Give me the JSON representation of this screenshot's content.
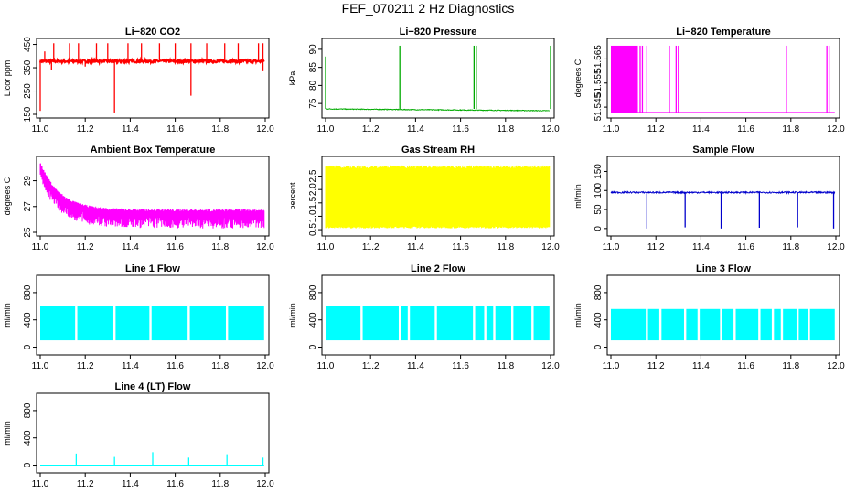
{
  "page_title": "FEF_070211  2 Hz Diagnostics",
  "chart_data": [
    {
      "type": "line",
      "title": "Li−820 CO2",
      "xlabel": "",
      "ylabel": "Licor ppm",
      "xlim": [
        11.0,
        12.0
      ],
      "ylim": [
        150,
        460
      ],
      "xticks": [
        "11.0",
        "11.2",
        "11.4",
        "11.6",
        "11.8",
        "12.0"
      ],
      "yticks": [
        "150",
        "250",
        "350",
        "450"
      ],
      "ytick_values": [
        150,
        250,
        350,
        450
      ],
      "series": [
        {
          "color": "#ff0000",
          "baseline": 378,
          "noise": 6,
          "drift": 0,
          "spikes_up": [
            [
              11.02,
              420
            ],
            [
              11.06,
              455
            ],
            [
              11.13,
              455
            ],
            [
              11.17,
              455
            ],
            [
              11.25,
              455
            ],
            [
              11.3,
              455
            ],
            [
              11.39,
              455
            ],
            [
              11.45,
              455
            ],
            [
              11.53,
              455
            ],
            [
              11.6,
              455
            ],
            [
              11.67,
              455
            ],
            [
              11.74,
              455
            ],
            [
              11.82,
              455
            ],
            [
              11.88,
              455
            ],
            [
              11.97,
              455
            ],
            [
              11.99,
              455
            ]
          ],
          "spikes_down": [
            [
              11.0,
              165
            ],
            [
              11.33,
              158
            ],
            [
              11.67,
              230
            ],
            [
              11.99,
              335
            ],
            [
              11.05,
              340
            ],
            [
              11.2,
              355
            ]
          ]
        }
      ]
    },
    {
      "type": "line",
      "title": "Li−820 Pressure",
      "xlabel": "",
      "ylabel": "kPa",
      "xlim": [
        11.0,
        12.0
      ],
      "ylim": [
        72,
        92
      ],
      "xticks": [
        "11.0",
        "11.2",
        "11.4",
        "11.6",
        "11.8",
        "12.0"
      ],
      "yticks": [
        "75",
        "80",
        "85",
        "90"
      ],
      "ytick_values": [
        75,
        80,
        85,
        90
      ],
      "series": [
        {
          "color": "#00aa00",
          "baseline": 73.5,
          "noise": 0.1,
          "drift": -0.5,
          "spikes_up": [
            [
              11.0,
              88
            ],
            [
              11.33,
              91
            ],
            [
              11.66,
              91
            ],
            [
              11.67,
              91
            ],
            [
              12.0,
              91
            ]
          ],
          "spikes_down": []
        }
      ]
    },
    {
      "type": "line",
      "title": "Li−820 Temperature",
      "xlabel": "",
      "ylabel": "degrees C",
      "xlim": [
        11.0,
        12.0
      ],
      "ylim": [
        51.542,
        51.572
      ],
      "xticks": [
        "11.0",
        "11.2",
        "11.4",
        "11.6",
        "11.8",
        "12.0"
      ],
      "yticks": [
        "51.545",
        "51.555",
        "51.565"
      ],
      "ytick_values": [
        51.545,
        51.555,
        51.565
      ],
      "series": [
        {
          "color": "#ff00ff",
          "baseline": 51.5428,
          "noise": 0,
          "drift": 0,
          "band": [
            11.0,
            11.12,
            51.5428,
            51.5705
          ],
          "spikes_up": [
            [
              11.13,
              51.5705
            ],
            [
              11.14,
              51.5705
            ],
            [
              11.16,
              51.5705
            ],
            [
              11.26,
              51.5705
            ],
            [
              11.29,
              51.5705
            ],
            [
              11.3,
              51.5705
            ],
            [
              11.78,
              51.5705
            ],
            [
              11.96,
              51.5705
            ],
            [
              11.97,
              51.5705
            ]
          ],
          "spikes_down": []
        }
      ]
    },
    {
      "type": "line",
      "title": "Ambient Box Temperature",
      "xlabel": "",
      "ylabel": "degrees C",
      "xlim": [
        11.0,
        12.0
      ],
      "ylim": [
        25,
        30.6
      ],
      "xticks": [
        "11.0",
        "11.2",
        "11.4",
        "11.6",
        "11.8",
        "12.0"
      ],
      "yticks": [
        "25",
        "27",
        "29"
      ],
      "ytick_values": [
        25,
        27,
        29
      ],
      "series": [
        {
          "color": "#ff00ff",
          "curve": "ambient",
          "noise_band": 1.3
        }
      ]
    },
    {
      "type": "line",
      "title": "Gas Stream RH",
      "xlabel": "",
      "ylabel": "percent",
      "xlim": [
        11.0,
        12.0
      ],
      "ylim": [
        0.4,
        3.1
      ],
      "xticks": [
        "11.0",
        "11.2",
        "11.4",
        "11.6",
        "11.8",
        "12.0"
      ],
      "yticks": [
        "0.5",
        "1.0",
        "1.5",
        "2.0",
        "2.5"
      ],
      "ytick_values": [
        0.5,
        1.0,
        1.5,
        2.0,
        2.5
      ],
      "series": [
        {
          "color": "#ffff00",
          "envelope": [
            0.55,
            2.9
          ]
        }
      ]
    },
    {
      "type": "line",
      "title": "Sample Flow",
      "xlabel": "",
      "ylabel": "ml/min",
      "xlim": [
        11.0,
        12.0
      ],
      "ylim": [
        -10,
        180
      ],
      "xticks": [
        "11.0",
        "11.2",
        "11.4",
        "11.6",
        "11.8",
        "12.0"
      ],
      "yticks": [
        "0",
        "50",
        "100",
        "150"
      ],
      "ytick_values": [
        0,
        50,
        100,
        150
      ],
      "series": [
        {
          "color": "#0000cc",
          "baseline": 95,
          "noise": 2,
          "drift": 0,
          "spikes_up": [],
          "spikes_down": [
            [
              11.16,
              0
            ],
            [
              11.33,
              3
            ],
            [
              11.49,
              0
            ],
            [
              11.66,
              2
            ],
            [
              11.83,
              3
            ],
            [
              11.99,
              0
            ]
          ]
        }
      ]
    },
    {
      "type": "line",
      "title": "Line 1 Flow",
      "xlabel": "",
      "ylabel": "ml/min",
      "xlim": [
        11.0,
        12.0
      ],
      "ylim": [
        -60,
        1000
      ],
      "xticks": [
        "11.0",
        "11.2",
        "11.4",
        "11.6",
        "11.8",
        "12.0"
      ],
      "yticks": [
        "0",
        "400",
        "800"
      ],
      "ytick_values": [
        0,
        400,
        800
      ],
      "series": [
        {
          "color": "#00ffff",
          "envelope": [
            100,
            600
          ],
          "gaps": [
            11.16,
            11.33,
            11.49,
            11.66,
            11.83
          ]
        }
      ]
    },
    {
      "type": "line",
      "title": "Line 2 Flow",
      "xlabel": "",
      "ylabel": "ml/min",
      "xlim": [
        11.0,
        12.0
      ],
      "ylim": [
        -60,
        1000
      ],
      "xticks": [
        "11.0",
        "11.2",
        "11.4",
        "11.6",
        "11.8",
        "12.0"
      ],
      "yticks": [
        "0",
        "400",
        "800"
      ],
      "ytick_values": [
        0,
        400,
        800
      ],
      "series": [
        {
          "color": "#00ffff",
          "envelope": [
            100,
            600
          ],
          "gaps": [
            11.16,
            11.33,
            11.37,
            11.49,
            11.66,
            11.71,
            11.75,
            11.83,
            11.92
          ]
        }
      ]
    },
    {
      "type": "line",
      "title": "Line 3 Flow",
      "xlabel": "",
      "ylabel": "ml/min",
      "xlim": [
        11.0,
        12.0
      ],
      "ylim": [
        -60,
        1000
      ],
      "xticks": [
        "11.0",
        "11.2",
        "11.4",
        "11.6",
        "11.8",
        "12.0"
      ],
      "yticks": [
        "0",
        "400",
        "800"
      ],
      "ytick_values": [
        0,
        400,
        800
      ],
      "series": [
        {
          "color": "#00ffff",
          "envelope": [
            100,
            560
          ],
          "gaps": [
            11.16,
            11.22,
            11.33,
            11.39,
            11.49,
            11.55,
            11.66,
            11.72,
            11.76,
            11.83,
            11.88
          ]
        }
      ]
    },
    {
      "type": "line",
      "title": "Line 4 (LT) Flow",
      "xlabel": "",
      "ylabel": "ml/min",
      "xlim": [
        11.0,
        12.0
      ],
      "ylim": [
        -60,
        1000
      ],
      "xticks": [
        "11.0",
        "11.2",
        "11.4",
        "11.6",
        "11.8",
        "12.0"
      ],
      "yticks": [
        "0",
        "400",
        "800"
      ],
      "ytick_values": [
        0,
        400,
        800
      ],
      "series": [
        {
          "color": "#00ffff",
          "baseline": 0,
          "noise": 0,
          "drift": 0,
          "spikes_up": [
            [
              11.16,
              170
            ],
            [
              11.33,
              120
            ],
            [
              11.5,
              190
            ],
            [
              11.66,
              110
            ],
            [
              11.83,
              160
            ],
            [
              11.99,
              110
            ]
          ],
          "spikes_down": []
        }
      ]
    }
  ]
}
